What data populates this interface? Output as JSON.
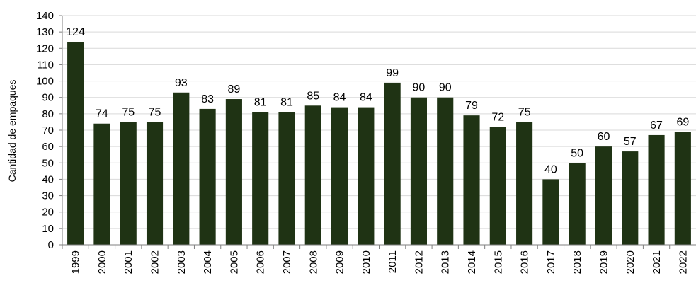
{
  "chart_data": {
    "type": "bar",
    "title": "",
    "xlabel": "",
    "ylabel": "Cantidad de empaques",
    "ylim": [
      0,
      140
    ],
    "y_ticks": [
      0,
      10,
      20,
      30,
      40,
      50,
      60,
      70,
      80,
      90,
      100,
      110,
      120,
      130,
      140
    ],
    "grid": true,
    "legend": "none",
    "bar_color": "#1f3314",
    "categories": [
      "1999",
      "2000",
      "2001",
      "2002",
      "2003",
      "2004",
      "2005",
      "2006",
      "2007",
      "2008",
      "2009",
      "2010",
      "2011",
      "2012",
      "2013",
      "2014",
      "2015",
      "2016",
      "2017",
      "2018",
      "2019",
      "2020",
      "2021",
      "2022"
    ],
    "values": [
      124,
      74,
      75,
      75,
      93,
      83,
      89,
      81,
      81,
      85,
      84,
      84,
      99,
      90,
      90,
      79,
      72,
      75,
      40,
      50,
      60,
      57,
      67,
      69
    ]
  }
}
